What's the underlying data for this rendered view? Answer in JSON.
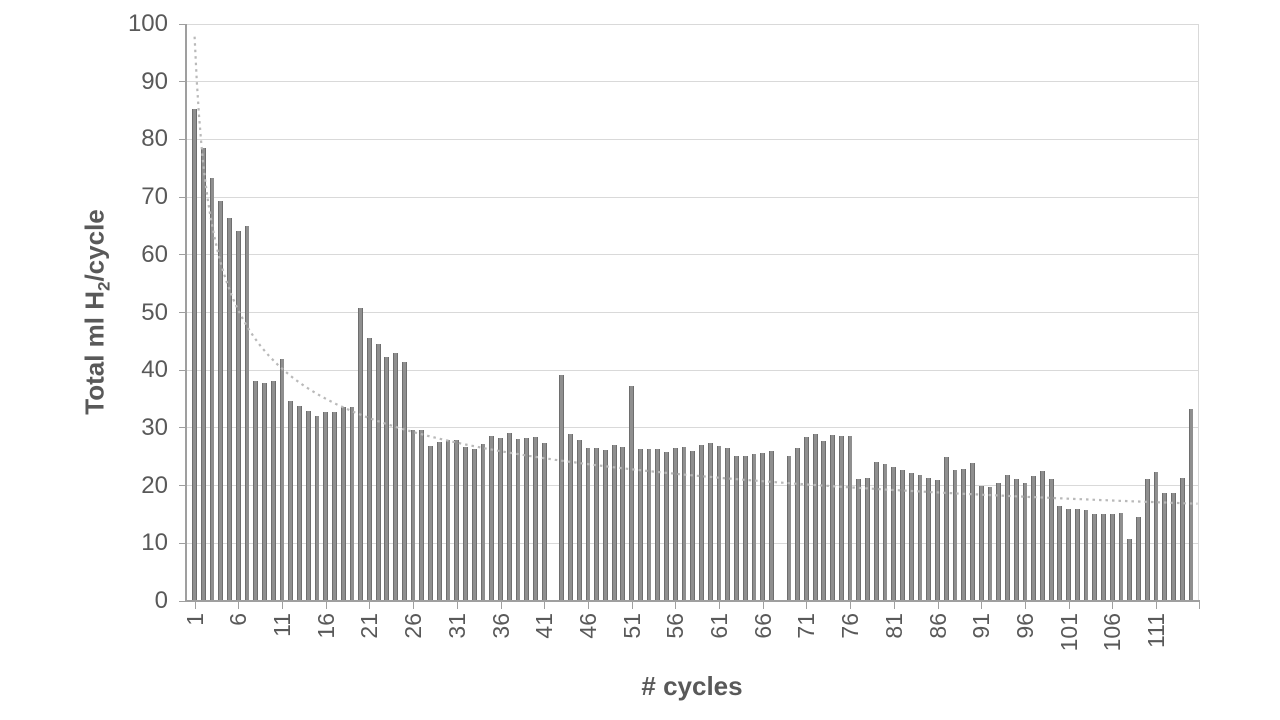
{
  "chart_data": {
    "type": "bar",
    "title": "",
    "xlabel": "# cycles",
    "ylabel": "Total ml H2/cycle",
    "ylabel_parts": {
      "prefix": "Total ml H",
      "sub": "2",
      "suffix": "/cycle"
    },
    "x_start": 1,
    "categories_note": "cycles 1 through 115, one bar per cycle; 0 = no bar visible",
    "values": [
      85.2,
      78.5,
      73.3,
      69.4,
      66.4,
      64.1,
      65.0,
      38.1,
      37.8,
      38.2,
      41.9,
      34.6,
      33.8,
      32.9,
      32.1,
      32.8,
      32.8,
      33.6,
      33.7,
      50.8,
      45.6,
      44.5,
      42.3,
      42.9,
      41.4,
      29.7,
      29.6,
      26.8,
      27.6,
      27.9,
      27.9,
      26.7,
      26.3,
      27.2,
      28.6,
      28.2,
      29.2,
      28.1,
      28.2,
      28.5,
      27.4,
      0,
      39.1,
      29.0,
      27.9,
      26.6,
      26.6,
      26.2,
      27.0,
      26.7,
      37.2,
      26.4,
      26.4,
      26.4,
      25.8,
      26.5,
      26.7,
      26.0,
      27.0,
      27.4,
      26.9,
      26.5,
      25.2,
      25.2,
      25.4,
      25.7,
      26.0,
      0,
      25.2,
      26.5,
      28.5,
      28.9,
      27.8,
      28.8,
      28.6,
      28.6,
      21.1,
      21.4,
      24.1,
      23.7,
      23.2,
      22.7,
      22.2,
      21.8,
      21.3,
      21.0,
      24.9,
      22.7,
      22.8,
      24.0,
      19.9,
      19.7,
      20.4,
      21.8,
      21.2,
      20.5,
      21.6,
      22.6,
      21.2,
      16.4,
      15.9,
      15.9,
      15.7,
      15.0,
      15.1,
      15.1,
      15.3,
      10.7,
      14.6,
      21.1,
      22.3,
      18.8,
      18.8,
      21.4,
      33.2
    ],
    "xtick_labels": [
      "1",
      "6",
      "11",
      "16",
      "21",
      "26",
      "31",
      "36",
      "41",
      "46",
      "51",
      "56",
      "61",
      "66",
      "71",
      "76",
      "81",
      "86",
      "91",
      "96",
      "101",
      "106",
      "111"
    ],
    "yticks": [
      0,
      10,
      20,
      30,
      40,
      50,
      60,
      70,
      80,
      90,
      100
    ],
    "ylim": [
      0,
      100
    ],
    "grid": "horizontal",
    "legend": "none",
    "trendline": {
      "style": "dotted",
      "type": "power",
      "a": 97.8,
      "b": -0.37,
      "x_start": 1,
      "x_end": 115.9
    },
    "colors": {
      "bar": "#8f8f8f",
      "bar_edge": "#6e6e6e",
      "trendline": "#b9b9b9",
      "gridline": "#d9d9d9",
      "axis": "#9f9f9f",
      "text": "#595959"
    }
  }
}
